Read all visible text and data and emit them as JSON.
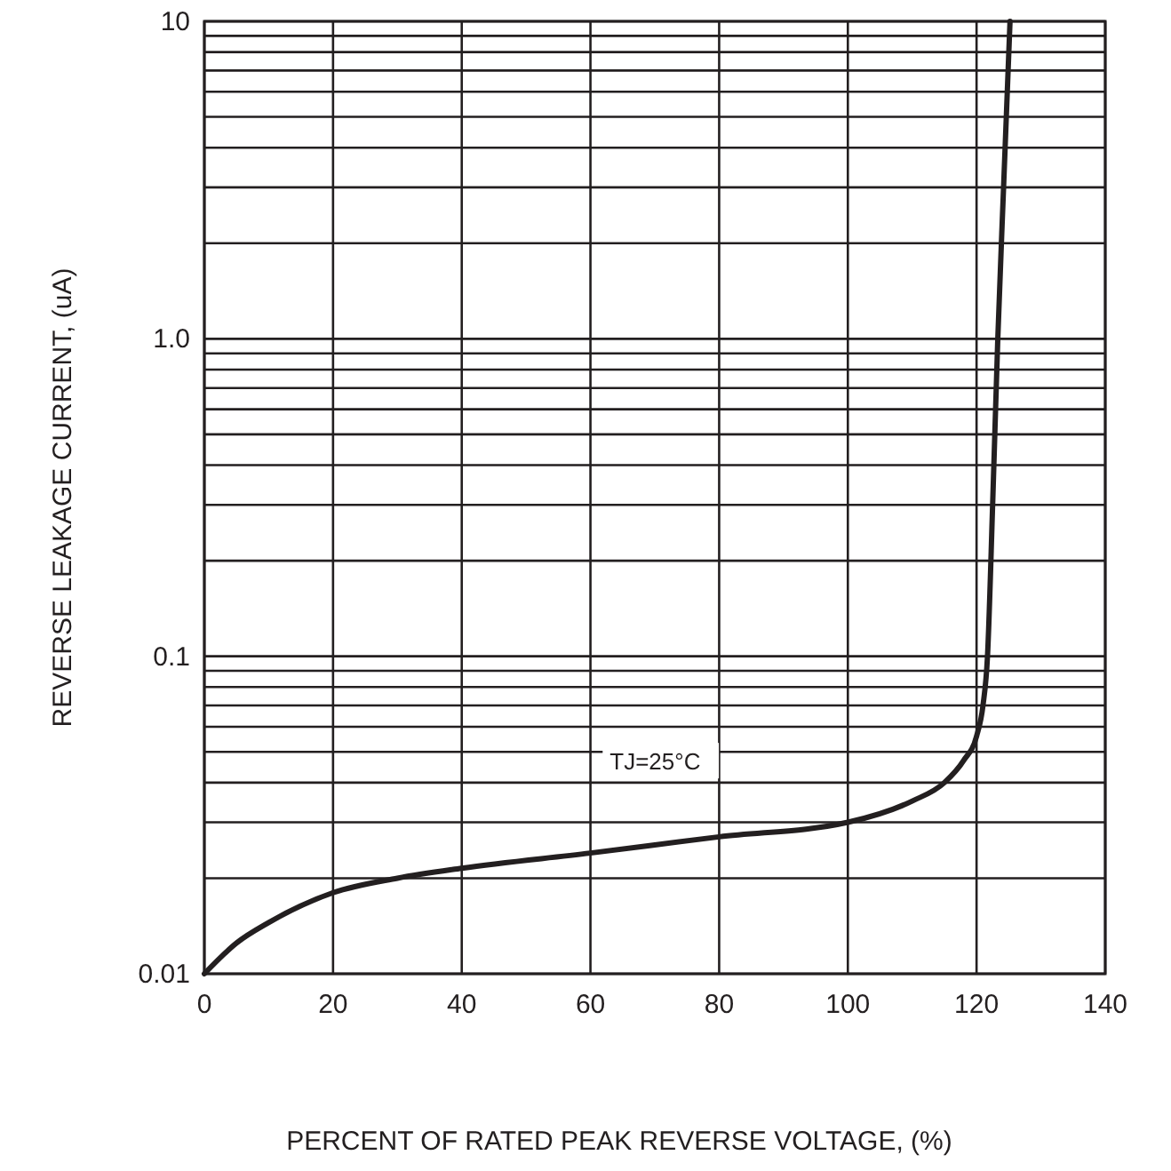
{
  "chart_data": {
    "type": "line",
    "xlabel": "PERCENT OF RATED PEAK REVERSE VOLTAGE, (%)",
    "ylabel": "REVERSE LEAKAGE CURRENT, (uA)",
    "log": "y",
    "grid": true,
    "marker": "none",
    "line_style": "solid",
    "xlim": [
      0,
      140
    ],
    "xticks": [
      0,
      20,
      40,
      60,
      80,
      100,
      120,
      140
    ],
    "ylim": [
      0.01,
      10
    ],
    "yticks": [
      0.01,
      {
        "value": 0.02,
        "label": null
      },
      {
        "value": 0.03,
        "label": null
      },
      {
        "value": 0.04,
        "label": null
      },
      {
        "value": 0.05,
        "label": null
      },
      {
        "value": 0.06,
        "label": null
      },
      {
        "value": 0.07,
        "label": null
      },
      {
        "value": 0.08,
        "label": null
      },
      {
        "value": 0.09,
        "label": null
      },
      0.1,
      {
        "value": 0.2,
        "label": null
      },
      {
        "value": 0.3,
        "label": null
      },
      {
        "value": 0.4,
        "label": null
      },
      {
        "value": 0.5,
        "label": null
      },
      {
        "value": 0.6,
        "label": null
      },
      {
        "value": 0.7,
        "label": null
      },
      {
        "value": 0.8,
        "label": null
      },
      {
        "value": 0.9,
        "label": null
      },
      {
        "value": 1,
        "label": "1.0"
      },
      {
        "value": 2,
        "label": null
      },
      {
        "value": 3,
        "label": null
      },
      {
        "value": 4,
        "label": null
      },
      {
        "value": 5,
        "label": null
      },
      {
        "value": 6,
        "label": null
      },
      {
        "value": 7,
        "label": null
      },
      {
        "value": 8,
        "label": null
      },
      {
        "value": 9,
        "label": null
      },
      10
    ],
    "annotations": [
      "TJ=25°C"
    ],
    "series": [
      {
        "color": "#231f20",
        "x": [
          0,
          5,
          10,
          20,
          30,
          40,
          60,
          80,
          100,
          110,
          115,
          118,
          120,
          121,
          121.7,
          122.5,
          123.3,
          124.2,
          125.2
        ],
        "values": [
          0.01,
          0.0125,
          0.0145,
          0.018,
          0.02,
          0.0215,
          0.024,
          0.027,
          0.03,
          0.035,
          0.04,
          0.047,
          0.056,
          0.07,
          0.1,
          0.3,
          1,
          3,
          10
        ]
      }
    ]
  }
}
